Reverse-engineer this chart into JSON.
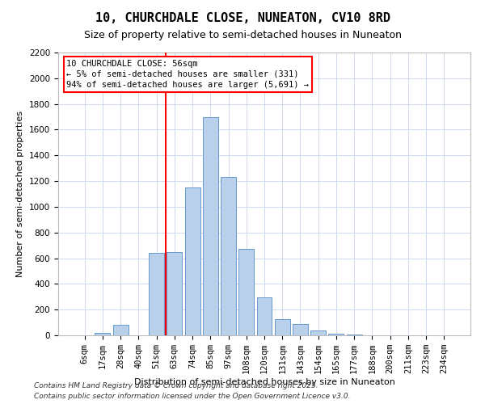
{
  "title": "10, CHURCHDALE CLOSE, NUNEATON, CV10 8RD",
  "subtitle": "Size of property relative to semi-detached houses in Nuneaton",
  "xlabel": "Distribution of semi-detached houses by size in Nuneaton",
  "ylabel": "Number of semi-detached properties",
  "bar_labels": [
    "6sqm",
    "17sqm",
    "28sqm",
    "40sqm",
    "51sqm",
    "63sqm",
    "74sqm",
    "85sqm",
    "97sqm",
    "108sqm",
    "120sqm",
    "131sqm",
    "143sqm",
    "154sqm",
    "165sqm",
    "177sqm",
    "188sqm",
    "200sqm",
    "211sqm",
    "223sqm",
    "234sqm"
  ],
  "bar_values": [
    0,
    20,
    80,
    0,
    640,
    650,
    1150,
    1700,
    1230,
    670,
    295,
    125,
    90,
    40,
    10,
    5,
    2,
    1,
    0,
    0,
    0
  ],
  "bar_color": "#b8d0ea",
  "bar_edgecolor": "#6699cc",
  "ylim": [
    0,
    2200
  ],
  "yticks": [
    0,
    200,
    400,
    600,
    800,
    1000,
    1200,
    1400,
    1600,
    1800,
    2000,
    2200
  ],
  "property_line_label": "10 CHURCHDALE CLOSE: 56sqm",
  "annotation_line1": "← 5% of semi-detached houses are smaller (331)",
  "annotation_line2": "94% of semi-detached houses are larger (5,691) →",
  "annotation_box_color": "white",
  "annotation_box_edgecolor": "red",
  "line_color": "red",
  "line_x_index": 4.5,
  "footer1": "Contains HM Land Registry data © Crown copyright and database right 2025.",
  "footer2": "Contains public sector information licensed under the Open Government Licence v3.0.",
  "bg_color": "white",
  "grid_color": "#c8d4e8",
  "title_fontsize": 11,
  "subtitle_fontsize": 9,
  "axis_label_fontsize": 8,
  "tick_fontsize": 7.5,
  "annotation_fontsize": 7.5,
  "footer_fontsize": 6.5
}
